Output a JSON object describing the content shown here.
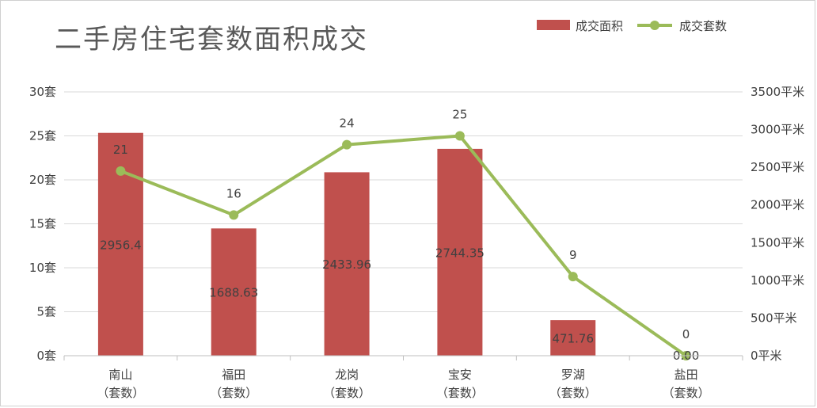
{
  "chart_data": {
    "type": "bar",
    "title": "二手房住宅套数面积成交",
    "categories": [
      [
        "南山",
        "（套数）"
      ],
      [
        "福田",
        "（套数）"
      ],
      [
        "龙岗",
        "（套数）"
      ],
      [
        "宝安",
        "（套数）"
      ],
      [
        "罗湖",
        "（套数）"
      ],
      [
        "盐田",
        "（套数）"
      ]
    ],
    "series": [
      {
        "name": "成交面积",
        "kind": "bar",
        "axis": "right",
        "color": "#c0504d",
        "values": [
          2956.4,
          1688.63,
          2433.96,
          2744.35,
          471.76,
          0
        ],
        "labels": [
          "2956.4",
          "1688.63",
          "2433.96",
          "2744.35",
          "471.76",
          "0.00"
        ]
      },
      {
        "name": "成交套数",
        "kind": "line",
        "axis": "left",
        "color": "#9bbb59",
        "values": [
          21,
          16,
          24,
          25,
          9,
          0
        ],
        "labels": [
          "21",
          "16",
          "24",
          "25",
          "9",
          "0"
        ]
      }
    ],
    "y_left": {
      "min": 0,
      "max": 30,
      "step": 5,
      "unit": "套"
    },
    "y_right": {
      "min": 0,
      "max": 3500,
      "step": 500,
      "unit": "平米"
    },
    "grid": true,
    "legend_position": "top-right"
  }
}
